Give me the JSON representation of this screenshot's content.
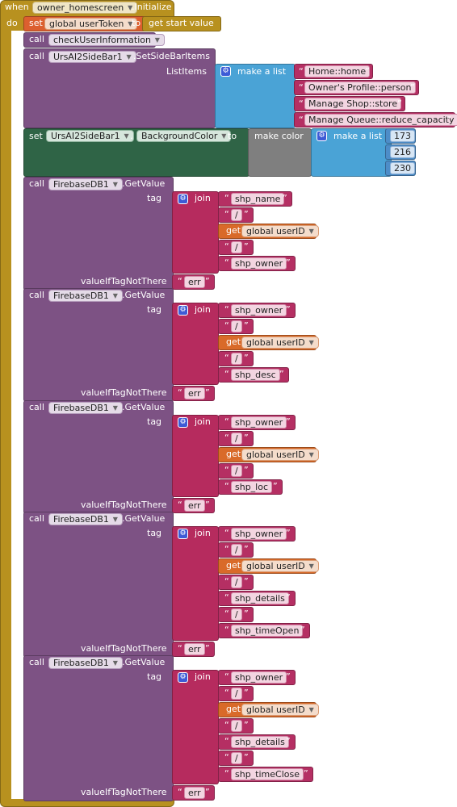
{
  "event": {
    "when": "when",
    "component": "owner_homescreen",
    "event_name": ".Initialize",
    "do": "do"
  },
  "set_token": {
    "set": "set",
    "variable": "global userToken",
    "to": "to",
    "value": "get start value"
  },
  "call_check": {
    "call": "call",
    "procedure": "checkUserInformation"
  },
  "sidebar_items": {
    "call": "call",
    "component": "UrsAI2SideBar1",
    "method": ".SetSideBarItems",
    "param": "ListItems",
    "make_list": "make a list",
    "items": [
      "Home::home",
      "Owner's Profile::person",
      "Manage Shop::store",
      "Manage Queue::reduce_capacity"
    ]
  },
  "background": {
    "set": "set",
    "component": "UrsAI2SideBar1",
    "dot": ".",
    "property": "BackgroundColor",
    "to": "to",
    "make_color": "make color",
    "make_list": "make a list",
    "rgb": [
      "173",
      "216",
      "230"
    ]
  },
  "get_calls": [
    {
      "call": "call",
      "component": "FirebaseDB1",
      "method": ".GetValue",
      "tag": "tag",
      "join": "join",
      "parts": [
        {
          "kind": "text",
          "value": "shp_name"
        },
        {
          "kind": "text",
          "value": "/"
        },
        {
          "kind": "get",
          "get": "get",
          "value": "global userID"
        },
        {
          "kind": "text",
          "value": "/"
        },
        {
          "kind": "text",
          "value": "shp_owner"
        }
      ],
      "fallback_label": "valueIfTagNotThere",
      "fallback": "err"
    },
    {
      "call": "call",
      "component": "FirebaseDB1",
      "method": ".GetValue",
      "tag": "tag",
      "join": "join",
      "parts": [
        {
          "kind": "text",
          "value": "shp_owner"
        },
        {
          "kind": "text",
          "value": "/"
        },
        {
          "kind": "get",
          "get": "get",
          "value": "global userID"
        },
        {
          "kind": "text",
          "value": "/"
        },
        {
          "kind": "text",
          "value": "shp_desc"
        }
      ],
      "fallback_label": "valueIfTagNotThere",
      "fallback": "err"
    },
    {
      "call": "call",
      "component": "FirebaseDB1",
      "method": ".GetValue",
      "tag": "tag",
      "join": "join",
      "parts": [
        {
          "kind": "text",
          "value": "shp_owner"
        },
        {
          "kind": "text",
          "value": "/"
        },
        {
          "kind": "get",
          "get": "get",
          "value": "global userID"
        },
        {
          "kind": "text",
          "value": "/"
        },
        {
          "kind": "text",
          "value": "shp_loc"
        }
      ],
      "fallback_label": "valueIfTagNotThere",
      "fallback": "err"
    },
    {
      "call": "call",
      "component": "FirebaseDB1",
      "method": ".GetValue",
      "tag": "tag",
      "join": "join",
      "parts": [
        {
          "kind": "text",
          "value": "shp_owner"
        },
        {
          "kind": "text",
          "value": "/"
        },
        {
          "kind": "get",
          "get": "get",
          "value": "global userID"
        },
        {
          "kind": "text",
          "value": "/"
        },
        {
          "kind": "text",
          "value": "shp_details"
        },
        {
          "kind": "text",
          "value": "/"
        },
        {
          "kind": "text",
          "value": "shp_timeOpen"
        }
      ],
      "fallback_label": "valueIfTagNotThere",
      "fallback": "err"
    },
    {
      "call": "call",
      "component": "FirebaseDB1",
      "method": ".GetValue",
      "tag": "tag",
      "join": "join",
      "parts": [
        {
          "kind": "text",
          "value": "shp_owner"
        },
        {
          "kind": "text",
          "value": "/"
        },
        {
          "kind": "get",
          "get": "get",
          "value": "global userID"
        },
        {
          "kind": "text",
          "value": "/"
        },
        {
          "kind": "text",
          "value": "shp_details"
        },
        {
          "kind": "text",
          "value": "/"
        },
        {
          "kind": "text",
          "value": "shp_timeClose"
        }
      ],
      "fallback_label": "valueIfTagNotThere",
      "fallback": "err"
    }
  ],
  "icons": {
    "dropdown": "▼",
    "mutator": "gear-icon",
    "quote_open": "“",
    "quote_close": "”"
  }
}
